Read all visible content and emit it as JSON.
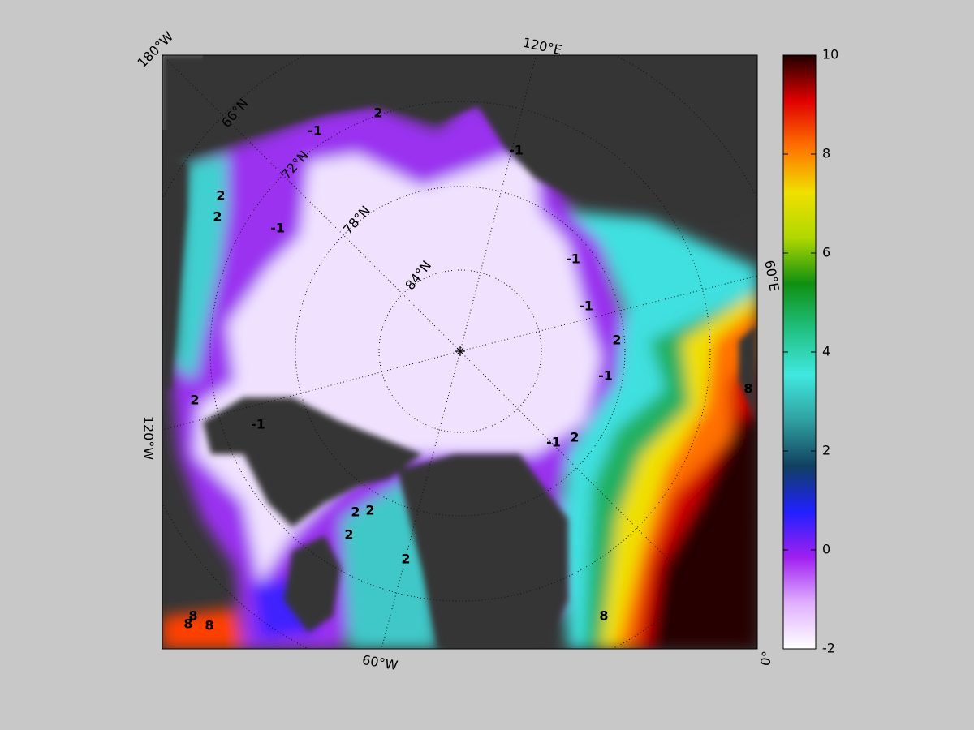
{
  "map": {
    "lon_labels": [
      "180°W",
      "120°E",
      "60°E",
      "0°",
      "60°W",
      "120°W"
    ],
    "lat_labels": [
      "66°N",
      "72°N",
      "78°N",
      "84°N"
    ],
    "contour_labels": [
      -1,
      -1,
      -1,
      -1,
      -1,
      -1,
      -1,
      -1,
      2,
      2,
      2,
      2,
      2,
      2,
      2,
      2,
      2,
      2,
      8,
      8,
      8,
      8,
      8
    ]
  },
  "colorbar": {
    "lim": [
      -2,
      10
    ],
    "ticks": [
      -2,
      0,
      2,
      4,
      6,
      8,
      10
    ],
    "colors": [
      "#ffffff",
      "#e0b0ff",
      "#a020f0",
      "#2020ff",
      "#104060",
      "#30a0a0",
      "#40e8e0",
      "#20c080",
      "#109010",
      "#b0d800",
      "#f0e000",
      "#ff7000",
      "#e00000",
      "#200000"
    ]
  }
}
